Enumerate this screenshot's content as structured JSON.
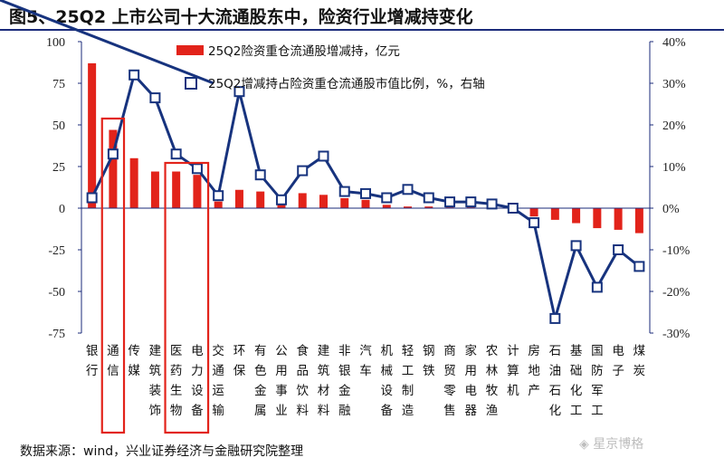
{
  "title": "图5、25Q2 上市公司十大流通股东中，险资行业增减持变化",
  "source": "数据来源：wind，兴业证券经济与金融研究院整理",
  "watermark": "◈ 星京博格",
  "colors": {
    "bar": "#e2231a",
    "line": "#17337e",
    "axis": "#1a2a7a",
    "highlight": "#e2231a"
  },
  "chart_data": {
    "type": "bar+line",
    "legend_position": "top-right",
    "categories": [
      "银行",
      "通信",
      "传媒",
      "建筑装饰",
      "医药生物",
      "电力设备",
      "交通运输",
      "环保",
      "有色金属",
      "公用事业",
      "食品饮料",
      "建筑材料",
      "非银金融",
      "汽车",
      "机械设备",
      "轻工制造",
      "钢铁",
      "商贸零售",
      "家用电器",
      "农林牧渔",
      "计算机",
      "房地产",
      "石油石化",
      "基础化工",
      "国防军工",
      "电子",
      "煤炭"
    ],
    "category_labels": [
      [
        "银",
        "行"
      ],
      [
        "通",
        "信"
      ],
      [
        "传",
        "媒"
      ],
      [
        "建",
        "筑",
        "装",
        "饰"
      ],
      [
        "医",
        "药",
        "生",
        "物"
      ],
      [
        "电",
        "力",
        "设",
        "备"
      ],
      [
        "交",
        "通",
        "运",
        "输"
      ],
      [
        "环",
        "保"
      ],
      [
        "有",
        "色",
        "金",
        "属"
      ],
      [
        "公",
        "用",
        "事",
        "业"
      ],
      [
        "食",
        "品",
        "饮",
        "料"
      ],
      [
        "建",
        "筑",
        "材",
        "料"
      ],
      [
        "非",
        "银",
        "金",
        "融"
      ],
      [
        "汽",
        "车"
      ],
      [
        "机",
        "械",
        "设",
        "备"
      ],
      [
        "轻",
        "工",
        "制",
        "造"
      ],
      [
        "钢",
        "铁"
      ],
      [
        "商",
        "贸",
        "零",
        "售"
      ],
      [
        "家",
        "用",
        "电",
        "器"
      ],
      [
        "农",
        "林",
        "牧",
        "渔"
      ],
      [
        "计",
        "算",
        "机"
      ],
      [
        "房",
        "地",
        "产"
      ],
      [
        "石",
        "油",
        "石",
        "化"
      ],
      [
        "基",
        "础",
        "化",
        "工"
      ],
      [
        "国",
        "防",
        "军",
        "工"
      ],
      [
        "电",
        "子"
      ],
      [
        "煤",
        "炭"
      ]
    ],
    "series": [
      {
        "name": "25Q2险资重仓流通股增减持，亿元",
        "type": "bar",
        "axis": "left",
        "values": [
          87,
          47,
          30,
          22,
          22,
          20,
          4,
          11,
          10,
          2,
          9,
          8,
          6,
          5,
          2,
          1,
          1,
          0.5,
          0.5,
          0.5,
          -1,
          -5,
          -7,
          -9,
          -12,
          -13,
          -15
        ]
      },
      {
        "name": "25Q2增减持占险资重仓流通股市值比例，%，右轴",
        "type": "line",
        "axis": "right",
        "values": [
          2.5,
          13,
          32,
          26.5,
          13,
          9.5,
          3,
          28,
          8,
          2,
          9,
          12.5,
          4,
          3.5,
          2.5,
          4.5,
          2.5,
          1.5,
          1.5,
          1,
          0,
          -3.5,
          -26.5,
          -9,
          -19,
          -10,
          -14
        ]
      }
    ],
    "ylim_left": [
      -75,
      100
    ],
    "yticks_left": [
      "100",
      "75",
      "50",
      "25",
      "0",
      "-25",
      "-50",
      "-75"
    ],
    "ylim_right": [
      -30,
      40
    ],
    "yticks_right": [
      "40%",
      "30%",
      "20%",
      "10%",
      "0%",
      "-10%",
      "-20%",
      "-30%"
    ],
    "grid": false,
    "highlighted_categories": [
      "通信",
      "医药生物",
      "电力设备"
    ]
  }
}
